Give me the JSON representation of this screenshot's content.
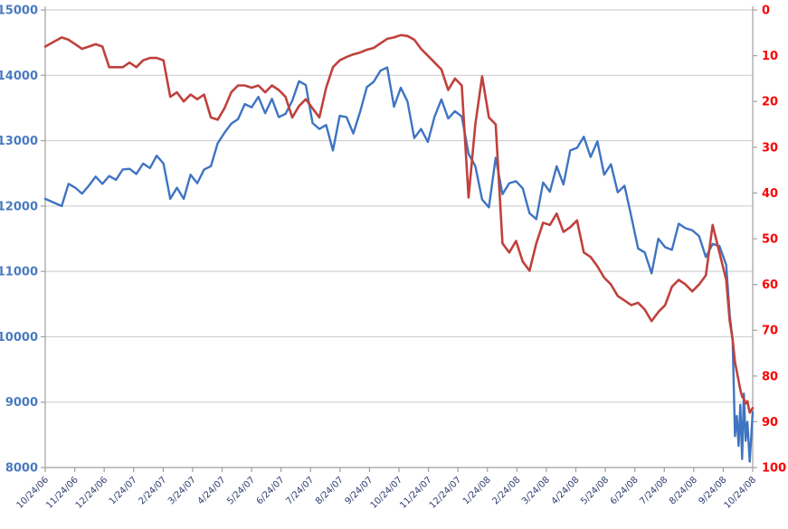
{
  "chart_data": {
    "type": "line",
    "title": "",
    "legend": "none",
    "grid": "horizontal-only",
    "background": "#ffffff",
    "gridline_color": "#c9c9c9",
    "axis_line_color": "#a0a0a0",
    "x_axis": {
      "range_months": [
        0,
        24
      ],
      "tick_labels": [
        "10/24/06",
        "11/24/06",
        "12/24/06",
        "1/24/07",
        "2/24/07",
        "3/24/07",
        "4/24/07",
        "5/24/07",
        "6/24/07",
        "7/24/07",
        "8/24/07",
        "9/24/07",
        "10/24/07",
        "11/24/07",
        "12/24/07",
        "1/24/08",
        "2/24/08",
        "3/24/08",
        "4/24/08",
        "5/24/08",
        "6/24/08",
        "7/24/08",
        "8/24/08",
        "9/24/08",
        "10/24/08"
      ],
      "label_color": "#2e3d6e",
      "label_rotation_deg": -45
    },
    "y_left_axis": {
      "min": 8000,
      "max": 15000,
      "step": 1000,
      "tick_labels": [
        "15000",
        "14000",
        "13000",
        "12000",
        "11000",
        "10000",
        "9000",
        "8000"
      ],
      "label_color": "#4a7abe",
      "inverted": false
    },
    "y_right_axis": {
      "min": 0,
      "max": 100,
      "step": 10,
      "tick_labels": [
        "0",
        "10",
        "20",
        "30",
        "40",
        "50",
        "60",
        "70",
        "80",
        "90",
        "100"
      ],
      "label_color": "#fa0000",
      "inverted": true
    },
    "x_months": [
      0.0,
      0.56,
      0.79,
      1.02,
      1.25,
      1.48,
      1.71,
      1.94,
      2.17,
      2.4,
      2.63,
      2.86,
      3.09,
      3.32,
      3.55,
      3.78,
      4.01,
      4.24,
      4.47,
      4.7,
      4.93,
      5.16,
      5.39,
      5.62,
      5.85,
      6.08,
      6.31,
      6.54,
      6.77,
      7.0,
      7.23,
      7.46,
      7.69,
      7.92,
      8.15,
      8.38,
      8.61,
      8.84,
      9.07,
      9.3,
      9.53,
      9.76,
      9.99,
      10.22,
      10.45,
      10.68,
      10.91,
      11.14,
      11.37,
      11.6,
      11.83,
      12.06,
      12.29,
      12.52,
      12.75,
      12.98,
      13.21,
      13.44,
      13.67,
      13.9,
      14.13,
      14.36,
      14.59,
      14.82,
      15.05,
      15.28,
      15.51,
      15.74,
      15.97,
      16.2,
      16.43,
      16.66,
      16.89,
      17.12,
      17.35,
      17.58,
      17.81,
      18.04,
      18.27,
      18.5,
      18.73,
      18.96,
      19.19,
      19.42,
      19.65,
      19.88,
      20.11,
      20.34,
      20.57,
      20.8,
      21.03,
      21.26,
      21.49,
      21.72,
      21.95,
      22.18,
      22.41,
      22.64,
      22.87,
      23.1,
      23.22,
      23.32,
      23.4,
      23.46,
      23.52,
      23.58,
      23.64,
      23.7,
      23.76,
      23.82,
      23.9,
      24.0
    ],
    "series": [
      {
        "name": "blue-series",
        "axis": "left",
        "color": "#3e74c2",
        "stroke_width": 2.4,
        "values": [
          12110,
          12000,
          12340,
          12280,
          12190,
          12310,
          12450,
          12340,
          12460,
          12400,
          12560,
          12570,
          12490,
          12650,
          12580,
          12770,
          12650,
          12110,
          12280,
          12110,
          12480,
          12350,
          12560,
          12610,
          12960,
          13120,
          13260,
          13330,
          13560,
          13510,
          13670,
          13420,
          13640,
          13360,
          13410,
          13610,
          13910,
          13850,
          13270,
          13180,
          13240,
          12850,
          13380,
          13360,
          13110,
          13440,
          13820,
          13900,
          14070,
          14120,
          13520,
          13810,
          13600,
          13040,
          13180,
          12980,
          13370,
          13630,
          13340,
          13450,
          13370,
          12800,
          12610,
          12100,
          11980,
          12740,
          12180,
          12350,
          12380,
          12270,
          11890,
          11800,
          12360,
          12220,
          12610,
          12330,
          12850,
          12890,
          13060,
          12750,
          12990,
          12480,
          12640,
          12210,
          12310,
          11840,
          11350,
          11290,
          10970,
          11500,
          11370,
          11330,
          11730,
          11660,
          11630,
          11540,
          11220,
          11420,
          11390,
          11100,
          10330,
          9950,
          8480,
          8790,
          8330,
          8960,
          8130,
          9130,
          8410,
          8700,
          8090,
          8850
        ]
      },
      {
        "name": "red-series",
        "axis": "right",
        "color": "#c0413d",
        "stroke_width": 2.6,
        "values": [
          8,
          6,
          6.5,
          7.5,
          8.5,
          8,
          7.5,
          8,
          12.5,
          12.5,
          12.5,
          11.5,
          12.5,
          11,
          10.5,
          10.5,
          11,
          19,
          18,
          20,
          18.5,
          19.5,
          18.5,
          23.5,
          24,
          21.5,
          18,
          16.5,
          16.5,
          17,
          16.5,
          18,
          16.5,
          17.5,
          19,
          23.5,
          21,
          19.5,
          21.5,
          23.5,
          17,
          12.5,
          11,
          10.3,
          9.7,
          9.3,
          8.7,
          8.3,
          7.3,
          6.3,
          6,
          5.5,
          5.7,
          6.5,
          8.5,
          10,
          11.5,
          13,
          17.5,
          15,
          16.5,
          41,
          25,
          14.5,
          23.5,
          25,
          51,
          53,
          50.5,
          55,
          57,
          51,
          46.5,
          47,
          44.5,
          48.5,
          47.5,
          46,
          53,
          54,
          56,
          58.5,
          60,
          62.5,
          63.5,
          64.5,
          64,
          65.5,
          68,
          66,
          64.5,
          60.5,
          59,
          60,
          61.5,
          60,
          58,
          47,
          53,
          59,
          68,
          72,
          77,
          79,
          81,
          83,
          84.5,
          85,
          86,
          85.5,
          88,
          87
        ]
      }
    ]
  }
}
